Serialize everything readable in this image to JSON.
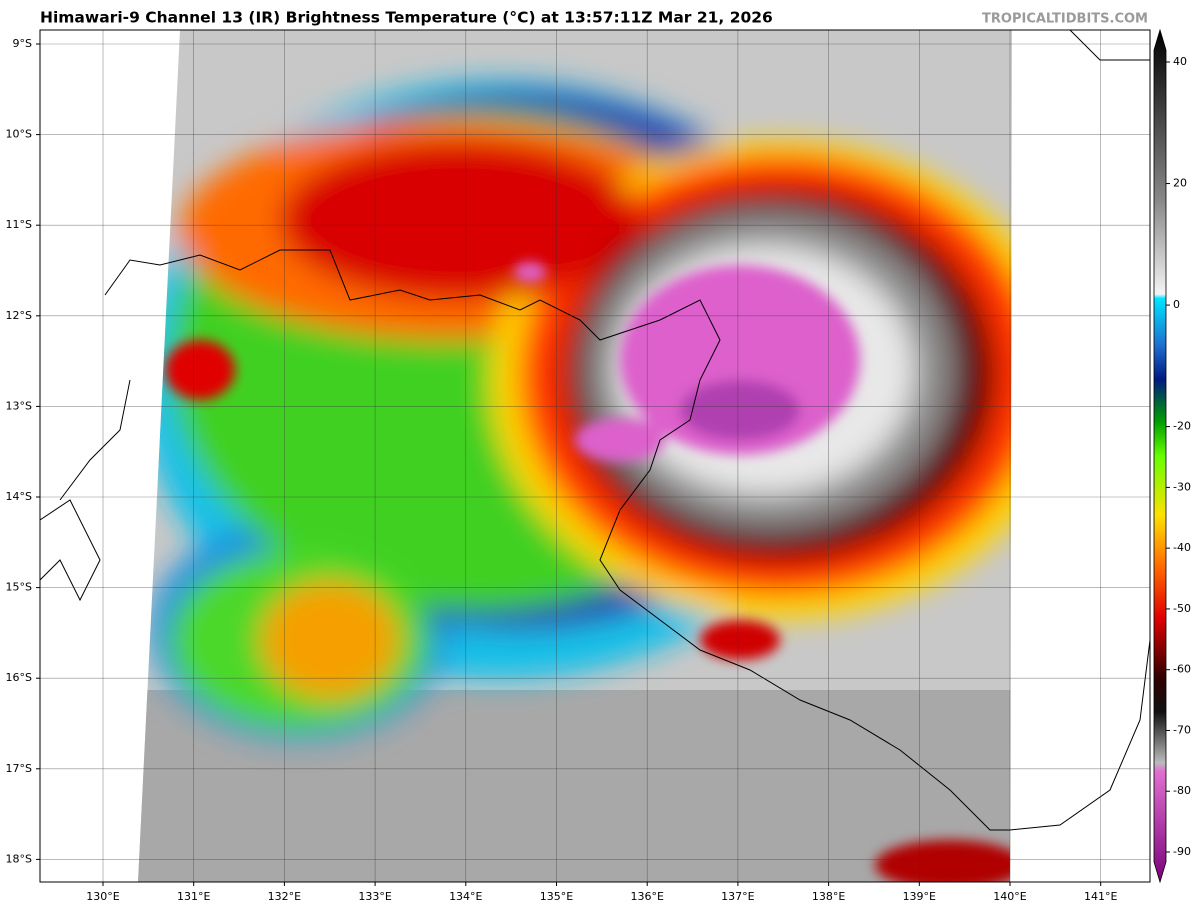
{
  "header": {
    "title": "Himawari-9 Channel 13 (IR) Brightness Temperature (°C) at 13:57:11Z Mar 21, 2026",
    "watermark": "TROPICALTIDBITS.COM"
  },
  "map": {
    "latitude_labels": [
      "9°S",
      "10°S",
      "11°S",
      "12°S",
      "13°S",
      "14°S",
      "15°S",
      "16°S",
      "17°S",
      "18°S"
    ],
    "longitude_labels": [
      "130°E",
      "131°E",
      "132°E",
      "133°E",
      "134°E",
      "135°E",
      "136°E",
      "137°E",
      "138°E",
      "139°E",
      "140°E",
      "141°E"
    ]
  },
  "colorbar": {
    "ticks": [
      40,
      20,
      0,
      -20,
      -30,
      -40,
      -50,
      -60,
      -70,
      -80,
      -90
    ]
  }
}
